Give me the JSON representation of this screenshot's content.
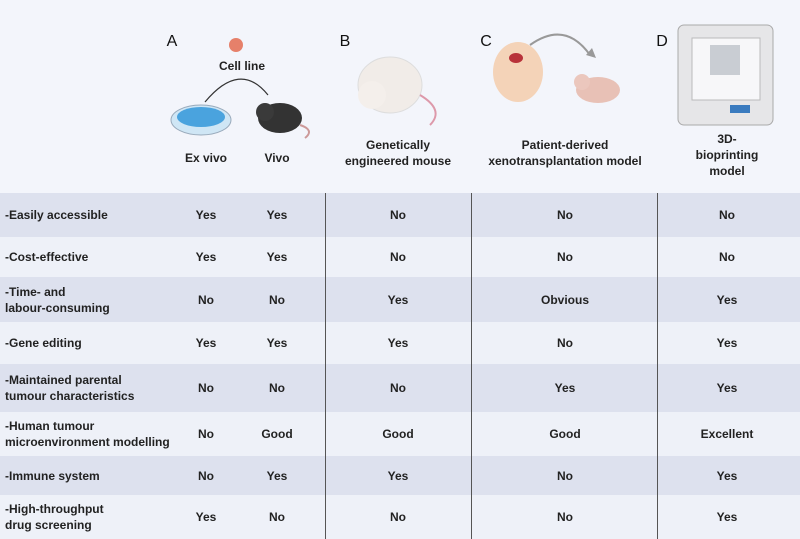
{
  "header": {
    "letters": [
      "A",
      "B",
      "C",
      "D"
    ],
    "cell_line": "Cell line",
    "columns": [
      "Ex vivo",
      "Vivo",
      "Genetically\nengineered mouse",
      "Patient-derived\nxenotransplantation model",
      "3D-bioprinting\nmodel"
    ]
  },
  "table": {
    "rows": [
      {
        "label": "-Easily accessible",
        "values": [
          "Yes",
          "Yes",
          "No",
          "No",
          "No"
        ]
      },
      {
        "label": "-Cost-effective",
        "values": [
          "Yes",
          "Yes",
          "No",
          "No",
          "No"
        ]
      },
      {
        "label": "-Time- and\nlabour-consuming",
        "values": [
          "No",
          "No",
          "Yes",
          "Obvious",
          "Yes"
        ]
      },
      {
        "label": "-Gene editing",
        "values": [
          "Yes",
          "Yes",
          "Yes",
          "No",
          "Yes"
        ]
      },
      {
        "label": "-Maintained parental\ntumour characteristics",
        "values": [
          "No",
          "No",
          "No",
          "Yes",
          "Yes"
        ]
      },
      {
        "label": "-Human tumour\nmicroenvironment modelling",
        "values": [
          "No",
          "Good",
          "Good",
          "Good",
          "Excellent"
        ]
      },
      {
        "label": "-Immune system",
        "values": [
          "No",
          "Yes",
          "Yes",
          "No",
          "Yes"
        ]
      },
      {
        "label": "-High-throughput\ndrug screening",
        "values": [
          "Yes",
          "No",
          "No",
          "No",
          "Yes"
        ]
      }
    ]
  }
}
